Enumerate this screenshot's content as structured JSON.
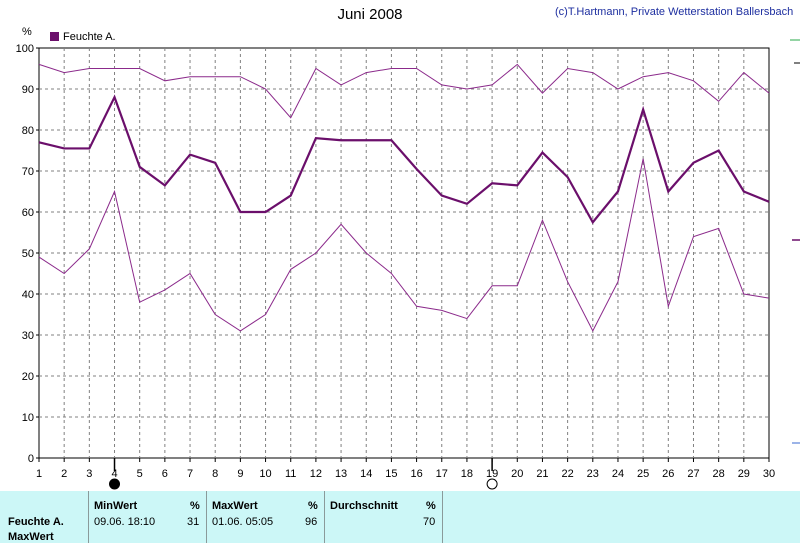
{
  "header": {
    "title": "Juni 2008",
    "copyright": "(c)T.Hartmann, Private Wetterstation Ballersbach",
    "unit": "%"
  },
  "chart_data": {
    "type": "line",
    "title": "Juni 2008",
    "x": [
      1,
      2,
      3,
      4,
      5,
      6,
      7,
      8,
      9,
      10,
      11,
      12,
      13,
      14,
      15,
      16,
      17,
      18,
      19,
      20,
      21,
      22,
      23,
      24,
      25,
      26,
      27,
      28,
      29,
      30
    ],
    "xlim": [
      1,
      30
    ],
    "ylim": [
      0,
      100
    ],
    "yticks": [
      0,
      10,
      20,
      30,
      40,
      50,
      60,
      70,
      80,
      90,
      100
    ],
    "grid": true,
    "legend": "top-left",
    "legend_label": "Feuchte A.",
    "series": [
      {
        "name": "Feuchte A.",
        "role": "avg",
        "color": "#6b0f6b",
        "values": [
          77,
          75.5,
          75.5,
          88,
          71,
          66.5,
          74,
          72,
          60,
          60,
          64,
          78,
          77.5,
          77.5,
          77.5,
          70.5,
          64,
          62,
          67,
          66.5,
          74.5,
          68.5,
          57.5,
          65,
          85,
          65,
          72,
          75,
          65,
          62.5
        ]
      },
      {
        "role": "max",
        "color": "#8b2a8b",
        "values": [
          96,
          94,
          95,
          95,
          95,
          92,
          93,
          93,
          93,
          90,
          83,
          95,
          91,
          94,
          95,
          95,
          91,
          90,
          91,
          96,
          89,
          95,
          94,
          90,
          93,
          94,
          92,
          87,
          94,
          89
        ]
      },
      {
        "role": "min",
        "color": "#8b2a8b",
        "values": [
          49,
          45,
          51,
          65,
          38,
          41,
          45,
          35,
          31,
          35,
          46,
          50,
          57,
          50,
          45,
          37,
          36,
          34,
          42,
          42,
          58,
          43,
          31,
          43,
          73,
          37,
          54,
          56,
          40,
          39
        ]
      }
    ],
    "markers": [
      {
        "x": 4,
        "symbol": "new-moon"
      },
      {
        "x": 19,
        "symbol": "full-moon"
      }
    ]
  },
  "stats": {
    "series_label": "Feuchte A.",
    "sub_label": "MaxWert",
    "unit": "%",
    "min": {
      "header": "MinWert",
      "datetime": "09.06.  18:10",
      "value": "31"
    },
    "max": {
      "header": "MaxWert",
      "datetime": "01.06.  05:05",
      "value": "96"
    },
    "avg": {
      "header": "Durchschnitt",
      "value": "70"
    }
  },
  "colors": {
    "series": "#6b0f6b",
    "grid": "#808080",
    "panel": "#ccf7f7"
  }
}
